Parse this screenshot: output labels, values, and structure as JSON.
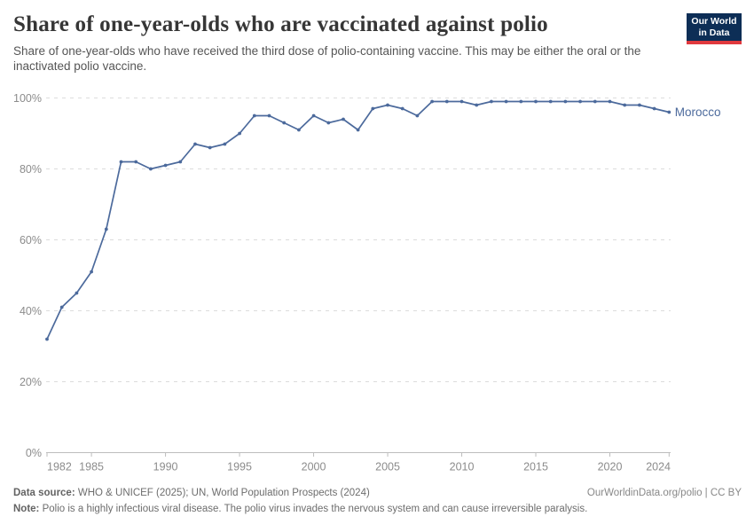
{
  "header": {
    "title": "Share of one-year-olds who are vaccinated against polio",
    "subtitle": "Share of one-year-olds who have received the third dose of polio-containing vaccine. This may be either the oral or the inactivated polio vaccine.",
    "logo": {
      "line1": "Our World",
      "line2": "in Data"
    }
  },
  "chart_data": {
    "type": "line",
    "title": "Share of one-year-olds who are vaccinated against polio",
    "entity_label": "Morocco",
    "x": [
      1982,
      1983,
      1984,
      1985,
      1986,
      1987,
      1988,
      1989,
      1990,
      1991,
      1992,
      1993,
      1994,
      1995,
      1996,
      1997,
      1998,
      1999,
      2000,
      2001,
      2002,
      2003,
      2004,
      2005,
      2006,
      2007,
      2008,
      2009,
      2010,
      2011,
      2012,
      2013,
      2014,
      2015,
      2016,
      2017,
      2018,
      2019,
      2020,
      2021,
      2022,
      2023,
      2024
    ],
    "series": [
      {
        "name": "Morocco",
        "values": [
          32,
          41,
          45,
          51,
          63,
          82,
          82,
          80,
          81,
          82,
          87,
          86,
          87,
          90,
          95,
          95,
          93,
          91,
          95,
          93,
          94,
          91,
          97,
          98,
          97,
          95,
          99,
          99,
          99,
          98,
          99,
          99,
          99,
          99,
          99,
          99,
          99,
          99,
          99,
          98,
          98,
          97,
          96
        ]
      }
    ],
    "x_ticks": [
      1982,
      1985,
      1990,
      1995,
      2000,
      2005,
      2010,
      2015,
      2020,
      2024
    ],
    "y_ticks": [
      0,
      20,
      40,
      60,
      80,
      100
    ],
    "y_tick_suffix": "%",
    "xlim": [
      1982,
      2024
    ],
    "ylim": [
      0,
      100
    ],
    "grid": true,
    "legend_position": "end-of-line",
    "colors": {
      "line": "#4C6A9C",
      "gridline": "#dcdcdc",
      "axis": "#bdbdbd",
      "tick_label": "#8c8c8c"
    }
  },
  "footer": {
    "datasource_label": "Data source:",
    "datasource_text": " WHO & UNICEF (2025); UN, World Population Prospects (2024)",
    "note_label": "Note:",
    "note_text": " Polio is a highly infectious viral disease. The polio virus invades the nervous system and can cause irreversible paralysis.",
    "link": "OurWorldinData.org/polio | CC BY"
  }
}
